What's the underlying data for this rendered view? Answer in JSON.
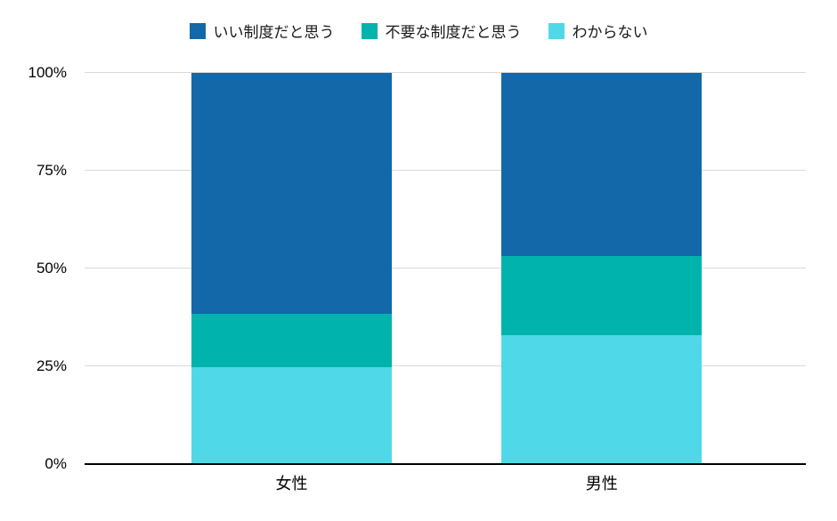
{
  "chart_data": {
    "type": "bar",
    "stacked": true,
    "stack_mode": "percent",
    "title": "",
    "xlabel": "",
    "ylabel": "",
    "categories": [
      "女性",
      "男性"
    ],
    "series": [
      {
        "name": "いい制度だと思う",
        "color": "#1268a8",
        "values": [
          61.6,
          46.8
        ]
      },
      {
        "name": "不要な制度だと思う",
        "color": "#00b3ad",
        "values": [
          13.6,
          20.2
        ]
      },
      {
        "name": "わからない",
        "color": "#4fd9e8",
        "values": [
          24.8,
          33.0
        ]
      }
    ],
    "y_ticks": [
      "0%",
      "25%",
      "50%",
      "75%",
      "100%"
    ],
    "ylim": [
      0,
      100
    ],
    "grid": true,
    "legend_position": "top",
    "axis_color": "#000000",
    "gridline_color": "#d9d9d9",
    "background_color": "#ffffff"
  }
}
